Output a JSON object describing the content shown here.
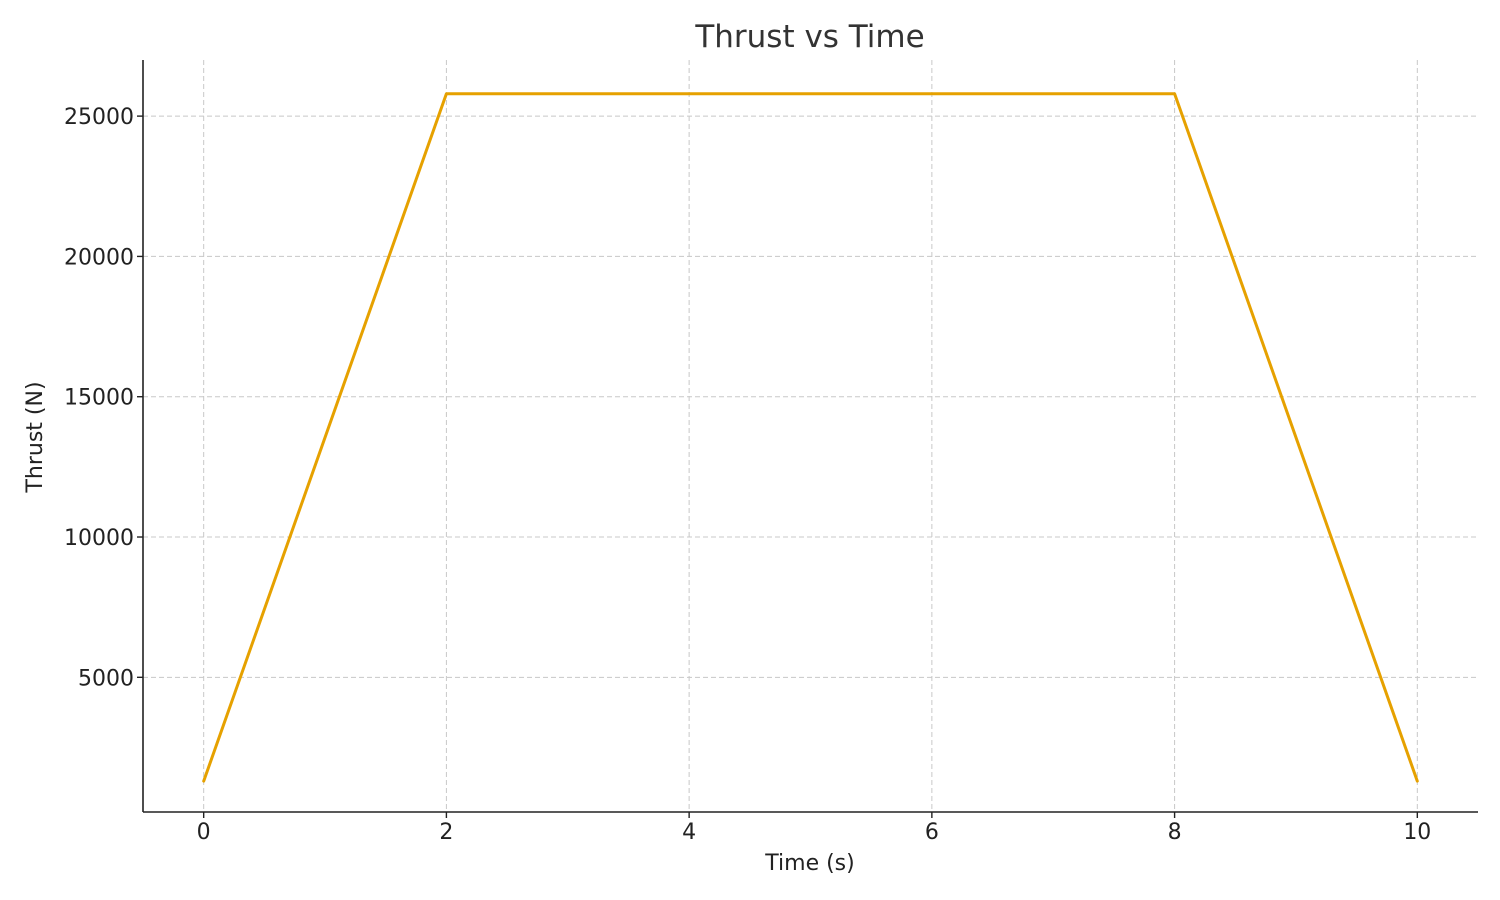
{
  "chart_data": {
    "type": "line",
    "title": "Thrust vs Time",
    "xlabel": "Time (s)",
    "ylabel": "Thrust (N)",
    "x_ticks": [
      0,
      2,
      4,
      6,
      8,
      10
    ],
    "y_ticks": [
      5000,
      10000,
      15000,
      20000,
      25000
    ],
    "xlim": [
      -0.5,
      10.5
    ],
    "ylim": [
      200,
      27000
    ],
    "grid": true,
    "series": [
      {
        "color": "#e6a100",
        "x": [
          0,
          2,
          8,
          10
        ],
        "y": [
          1300,
          25800,
          25800,
          1300
        ]
      }
    ]
  }
}
